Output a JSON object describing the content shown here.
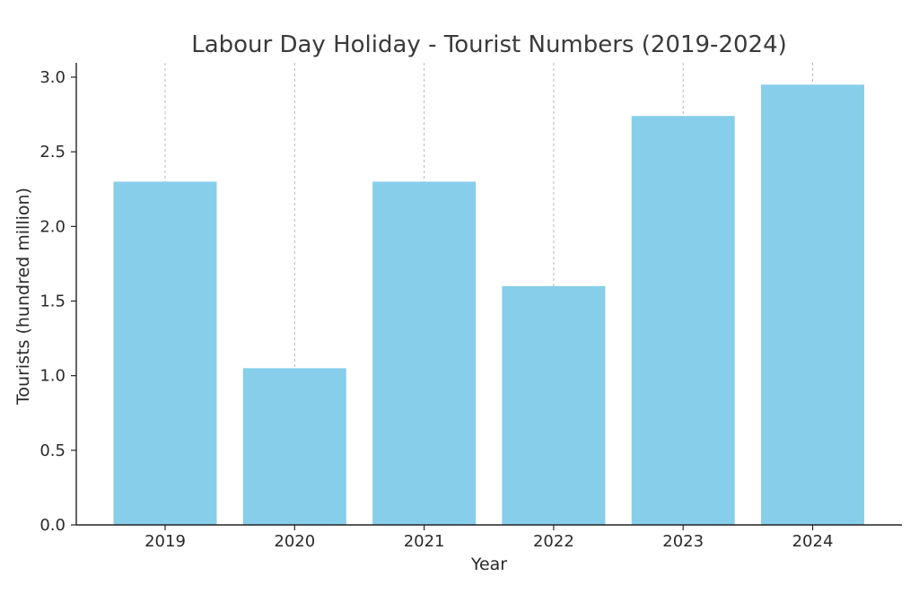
{
  "chart_data": {
    "type": "bar",
    "title": "Labour Day Holiday - Tourist Numbers (2019-2024)",
    "xlabel": "Year",
    "ylabel": "Tourists (hundred million)",
    "categories": [
      "2019",
      "2020",
      "2021",
      "2022",
      "2023",
      "2024"
    ],
    "values": [
      2.3,
      1.05,
      2.3,
      1.6,
      2.74,
      2.95
    ],
    "ylim": [
      0,
      3.0
    ],
    "yticks": [
      "0.0",
      "0.5",
      "1.0",
      "1.5",
      "2.0",
      "2.5",
      "3.0"
    ],
    "grid": "vertical dashed at categories",
    "legend": "none",
    "bar_color": "#87ceeb"
  }
}
